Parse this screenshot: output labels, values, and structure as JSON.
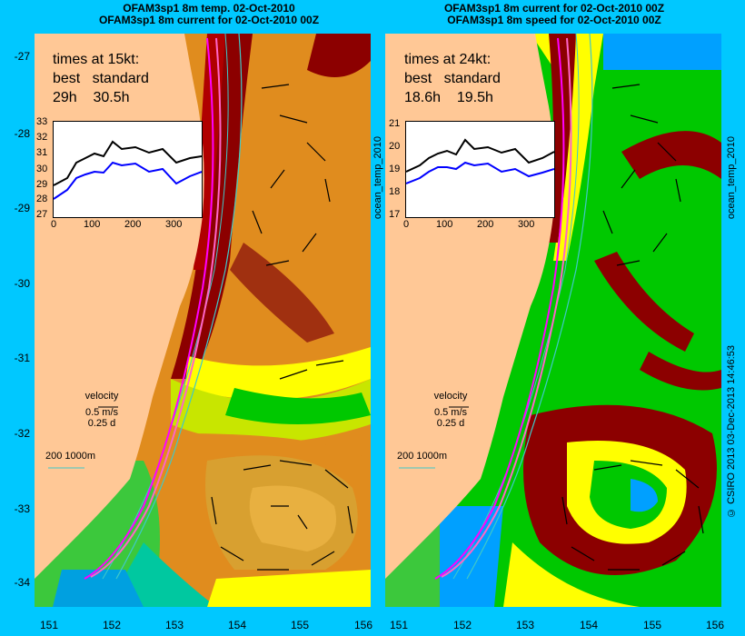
{
  "left": {
    "title_line1": "OFAM3sp1 8m temp. 02-Oct-2010",
    "title_line2": "OFAM3sp1 8m current for 02-Oct-2010 00Z",
    "times_header": "times at 15kt:",
    "best_label": "best",
    "standard_label": "standard",
    "best_value": "29h",
    "standard_value": "30.5h",
    "inset_y_ticks": [
      "33",
      "32",
      "31",
      "30",
      "29",
      "28",
      "27"
    ],
    "inset_x_ticks": [
      "0",
      "100",
      "200",
      "300"
    ],
    "side_label": "ocean_temp_2010"
  },
  "right": {
    "title_line1": "OFAM3sp1 8m current for 02-Oct-2010 00Z",
    "title_line2": "OFAM3sp1 8m speed for 02-Oct-2010 00Z",
    "times_header": "times at 24kt:",
    "best_label": "best",
    "standard_label": "standard",
    "best_value": "18.6h",
    "standard_value": "19.5h",
    "inset_y_ticks": [
      "21",
      "20",
      "19",
      "18",
      "17"
    ],
    "inset_x_ticks": [
      "0",
      "100",
      "200",
      "300"
    ],
    "side_label": "ocean_temp_2010"
  },
  "legend": {
    "velocity_label": "velocity",
    "speed_label": "0.5 m/s",
    "time_label": "0.25 d",
    "isobath_label": "200  1000m"
  },
  "axes": {
    "lat_ticks": [
      "-27",
      "-28",
      "-29",
      "-30",
      "-31",
      "-32",
      "-33",
      "-34"
    ],
    "lon_ticks": [
      "151",
      "152",
      "153",
      "154",
      "155",
      "156"
    ]
  },
  "copyright": "© CSIRO 2013   03-Dec-2013 14:46:53",
  "colors": {
    "background": "#00c8ff",
    "land": "#ffc896",
    "route_best": "#ff00ff",
    "route_standard": "#ff64c8",
    "isobath": "#40c8c8",
    "warm": "#e08c1e",
    "hot": "#8c0000",
    "mid": "#ffff00",
    "cool": "#00c800",
    "cold": "#0096ff"
  }
}
